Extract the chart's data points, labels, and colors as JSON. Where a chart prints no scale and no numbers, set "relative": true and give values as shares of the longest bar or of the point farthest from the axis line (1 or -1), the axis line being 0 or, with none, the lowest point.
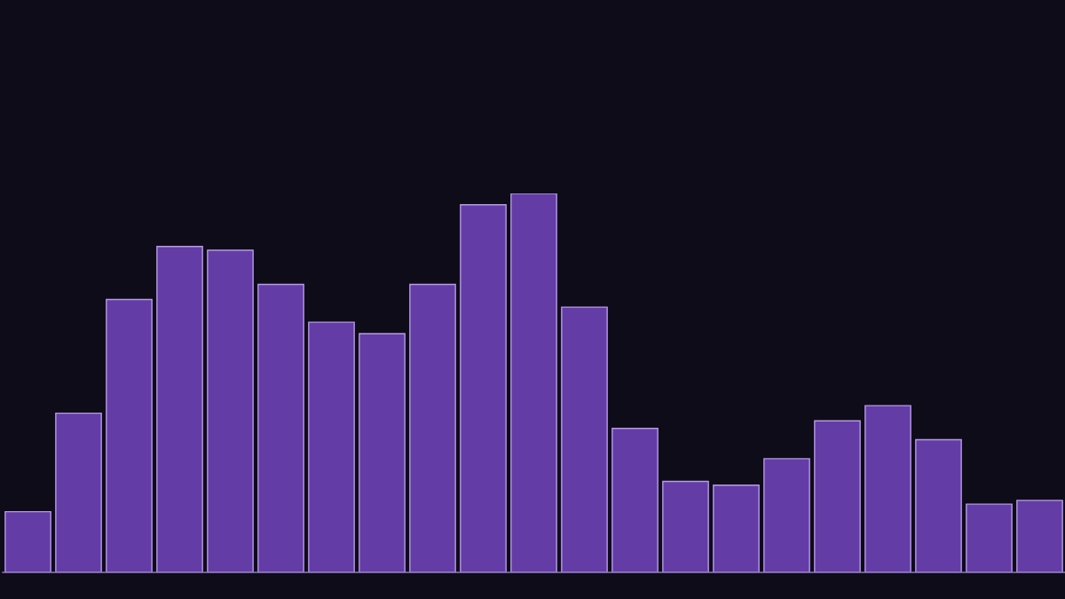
{
  "chart_data": {
    "type": "bar",
    "relative": true,
    "categories": [
      null,
      null,
      null,
      null,
      null,
      null,
      null,
      null,
      null,
      null,
      null,
      null,
      null,
      null,
      null,
      null,
      null,
      null,
      null,
      null,
      null
    ],
    "values": [
      0.16,
      0.42,
      0.72,
      0.86,
      0.85,
      0.76,
      0.66,
      0.63,
      0.76,
      0.97,
      1,
      0.7,
      0.38,
      0.24,
      0.23,
      0.3,
      0.4,
      0.44,
      0.35,
      0.18,
      0.19
    ],
    "color": "#643ca6"
  }
}
